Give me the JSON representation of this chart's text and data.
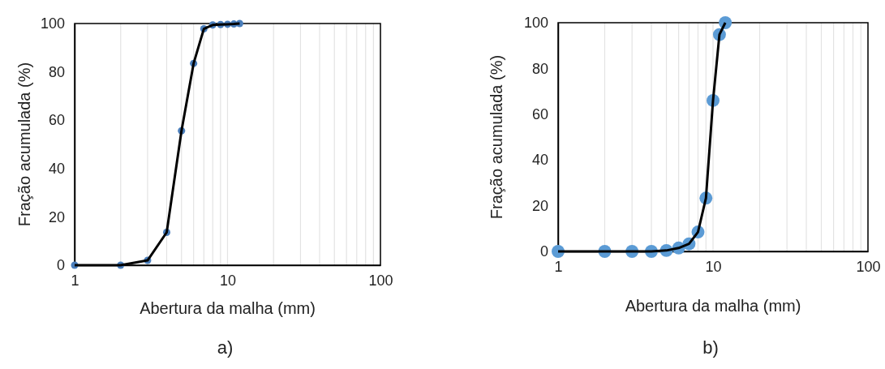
{
  "chart_data": [
    {
      "type": "line",
      "xlabel": "Abertura da malha (mm)",
      "ylabel": "Fração acumulada (%)",
      "annotations": [
        "a)"
      ],
      "log": "x",
      "grid": "x",
      "marker": "circle",
      "line_style": "solid",
      "xlim": [
        1,
        100
      ],
      "ylim": [
        0,
        100
      ],
      "yticks": [
        0,
        20,
        40,
        60,
        80,
        100
      ],
      "xticks": [
        1,
        {
          "value": 2,
          "label": null
        },
        {
          "value": 3,
          "label": null
        },
        {
          "value": 4,
          "label": null
        },
        {
          "value": 5,
          "label": null
        },
        {
          "value": 6,
          "label": null
        },
        {
          "value": 7,
          "label": null
        },
        {
          "value": 8,
          "label": null
        },
        {
          "value": 9,
          "label": null
        },
        10,
        {
          "value": 20,
          "label": null
        },
        {
          "value": 30,
          "label": null
        },
        {
          "value": 40,
          "label": null
        },
        {
          "value": 50,
          "label": null
        },
        {
          "value": 60,
          "label": null
        },
        {
          "value": 70,
          "label": null
        },
        {
          "value": 80,
          "label": null
        },
        {
          "value": 90,
          "label": null
        },
        100
      ],
      "x": [
        1,
        2,
        3,
        4,
        5,
        6,
        7,
        8,
        9,
        10,
        11,
        12
      ],
      "series": [
        {
          "color": "#4a7ebb",
          "values": [
            0,
            0,
            2,
            13.6,
            55.6,
            83.5,
            97.8,
            99.4,
            99.6,
            99.7,
            99.8,
            100
          ]
        }
      ]
    },
    {
      "type": "line",
      "xlabel": "Abertura da malha (mm)",
      "ylabel": "Fração acumulada (%)",
      "annotations": [
        "b)"
      ],
      "log": "x",
      "grid": "x",
      "marker": "circle",
      "line_style": "solid",
      "xlim": [
        1,
        100
      ],
      "ylim": [
        0,
        100
      ],
      "yticks": [
        0,
        20,
        40,
        60,
        80,
        100
      ],
      "xticks": [
        1,
        {
          "value": 2,
          "label": null
        },
        {
          "value": 3,
          "label": null
        },
        {
          "value": 4,
          "label": null
        },
        {
          "value": 5,
          "label": null
        },
        {
          "value": 6,
          "label": null
        },
        {
          "value": 7,
          "label": null
        },
        {
          "value": 8,
          "label": null
        },
        {
          "value": 9,
          "label": null
        },
        10,
        {
          "value": 20,
          "label": null
        },
        {
          "value": 30,
          "label": null
        },
        {
          "value": 40,
          "label": null
        },
        {
          "value": 50,
          "label": null
        },
        {
          "value": 60,
          "label": null
        },
        {
          "value": 70,
          "label": null
        },
        {
          "value": 80,
          "label": null
        },
        {
          "value": 90,
          "label": null
        },
        100
      ],
      "x": [
        1,
        2,
        3,
        4,
        5,
        6,
        7,
        8,
        9,
        10,
        11,
        12
      ],
      "series": [
        {
          "color": "#5b9bd5",
          "values": [
            0,
            0,
            0,
            0,
            0.4,
            1.5,
            3.3,
            8.5,
            23.3,
            66,
            94.8,
            100
          ]
        }
      ]
    }
  ]
}
